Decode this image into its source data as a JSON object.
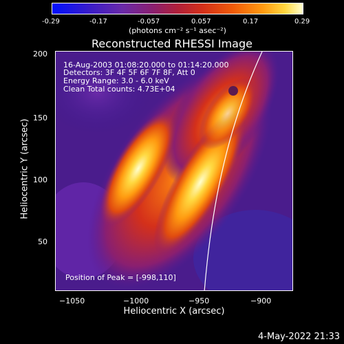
{
  "colorbar": {
    "ticks": [
      "-0.29",
      "-0.17",
      "-0.057",
      "0.057",
      "0.17",
      "0.29"
    ],
    "units": "(photons cm⁻² s⁻¹ asec⁻²)"
  },
  "plot": {
    "title": "Reconstructed RHESSI Image",
    "xlabel": "Heliocentric X (arcsec)",
    "ylabel": "Heliocentric Y (arcsec)",
    "xticks": [
      "−1050",
      "−1000",
      "−950",
      "−900"
    ],
    "yticks": [
      "200",
      "150",
      "100",
      "50"
    ],
    "info": {
      "line1": "16-Aug-2003 01:08:20.000 to 01:14:20.000",
      "line2": "Detectors: 3F 4F 5F 6F 7F 8F, Att 0",
      "line3": "Energy Range: 3.0 - 6.0 keV",
      "line4": "Clean     Total counts: 4.73E+04"
    },
    "peak_label": "Position of Peak = [-998,110]"
  },
  "footer": {
    "date": "4-May-2022 21:33"
  },
  "colors": {
    "background": "#000000",
    "foreground": "#ffffff"
  }
}
